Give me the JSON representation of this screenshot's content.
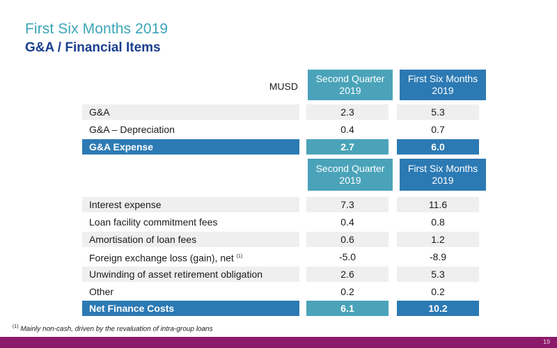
{
  "header": {
    "title": "First Six Months 2019",
    "subtitle": "G&A / Financial Items"
  },
  "unit_label": "MUSD",
  "columns_top": {
    "q_line1": "Second Quarter",
    "q_line2": "2019",
    "s_line1": "First Six Months",
    "s_line2": "2019"
  },
  "columns_mid": {
    "q_line1": "Second Quarter",
    "q_line2": "2019",
    "s_line1": "First Six Months",
    "s_line2": "2019"
  },
  "ga_rows": [
    {
      "label": "G&A",
      "q2": "2.3",
      "h1": "5.3"
    },
    {
      "label": "G&A – Depreciation",
      "q2": "0.4",
      "h1": "0.7"
    }
  ],
  "ga_total": {
    "label": "G&A Expense",
    "q2": "2.7",
    "h1": "6.0"
  },
  "fin_rows": [
    {
      "label": "Interest expense",
      "q2": "7.3",
      "h1": "11.6"
    },
    {
      "label": "Loan facility commitment fees",
      "q2": "0.4",
      "h1": "0.8"
    },
    {
      "label": "Amortisation of loan fees",
      "q2": "0.6",
      "h1": "1.2"
    },
    {
      "label": "Foreign exchange loss (gain), net",
      "sup": "(1)",
      "q2": "-5.0",
      "h1": "-8.9"
    },
    {
      "label": "Unwinding of asset retirement obligation",
      "q2": "2.6",
      "h1": "5.3"
    },
    {
      "label": "Other",
      "q2": "0.2",
      "h1": "0.2"
    }
  ],
  "fin_total": {
    "label": "Net Finance Costs",
    "q2": "6.1",
    "h1": "10.2"
  },
  "footnote": {
    "marker": "(1)",
    "text": "Mainly non-cash, driven by the revaluation of intra-group loans"
  },
  "page_number": "19",
  "colors": {
    "title": "#3aa5b8",
    "subtitle": "#1b3f8f",
    "quarter_header": "#4aa3b9",
    "sixmonth_header": "#2c7ab4",
    "bottom_bar": "#8c1a6a"
  }
}
